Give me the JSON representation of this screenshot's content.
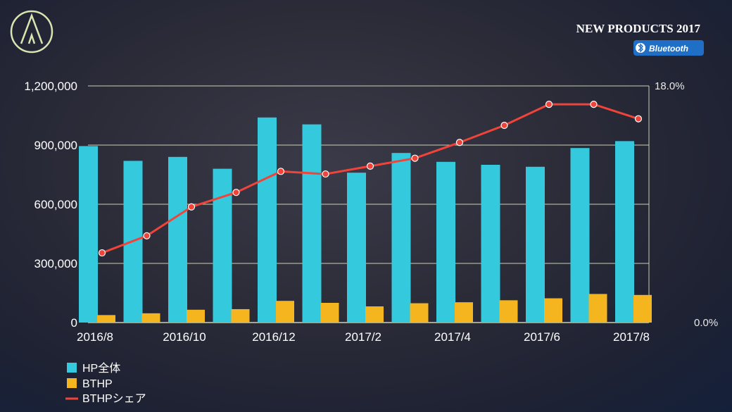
{
  "header": {
    "title": "NEW PRODUCTS 2017",
    "badge": "Bluetooth",
    "logo_icon": "audio-technica-logo-icon"
  },
  "colors": {
    "hp_bar": "#35c9de",
    "bthp_bar": "#f5b51f",
    "share_line": "#f0443a",
    "grid": "#e6edc8"
  },
  "chart_data": {
    "type": "bar",
    "categories": [
      "2016/8",
      "2016/9",
      "2016/10",
      "2016/11",
      "2016/12",
      "2017/1",
      "2017/2",
      "2017/3",
      "2017/4",
      "2017/5",
      "2017/6",
      "2017/7",
      "2017/8"
    ],
    "x_tick_labels": [
      "2016/8",
      "2016/10",
      "2016/12",
      "2017/2",
      "2017/4",
      "2017/6",
      "2017/8"
    ],
    "series": [
      {
        "name": "HP全体",
        "type": "bar",
        "axis": "left",
        "values": [
          895000,
          820000,
          840000,
          780000,
          1040000,
          1005000,
          760000,
          860000,
          815000,
          800000,
          790000,
          885000,
          920000
        ]
      },
      {
        "name": "BTHP",
        "type": "bar",
        "axis": "left",
        "values": [
          38000,
          47000,
          65000,
          68000,
          110000,
          100000,
          82000,
          98000,
          103000,
          113000,
          123000,
          145000,
          140000
        ]
      },
      {
        "name": "BTHPシェア",
        "type": "line",
        "axis": "right",
        "values": [
          5.3,
          6.6,
          8.8,
          9.9,
          11.5,
          11.3,
          11.9,
          12.5,
          13.7,
          15.0,
          16.6,
          16.6,
          15.5
        ]
      }
    ],
    "left_axis": {
      "min": 0,
      "max": 1200000,
      "ticks": [
        0,
        300000,
        600000,
        900000,
        1200000
      ],
      "tick_labels": [
        "0",
        "300,000",
        "600,000",
        "900,000",
        "1,200,000"
      ]
    },
    "right_axis": {
      "min": 0,
      "max": 18,
      "tick_labels": [
        "0.0%",
        "18.0%"
      ]
    },
    "legend": [
      {
        "label": "HP全体",
        "marker": "square"
      },
      {
        "label": "BTHP",
        "marker": "square"
      },
      {
        "label": "BTHPシェア",
        "marker": "line"
      }
    ],
    "legend_position": "bottom-left",
    "grid": true
  }
}
